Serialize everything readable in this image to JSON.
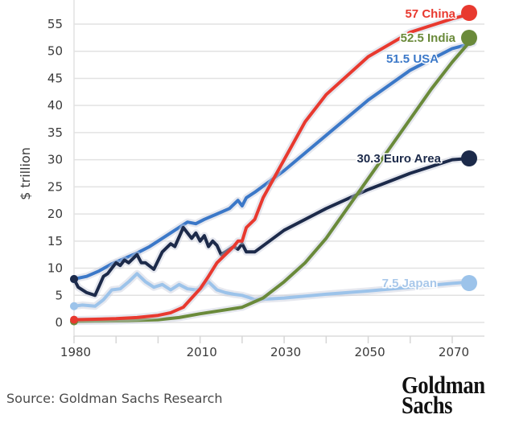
{
  "chart_data": {
    "type": "line",
    "title": "",
    "xlabel": "",
    "ylabel": "$ trillion",
    "xlim": [
      1980,
      2075
    ],
    "ylim": [
      0,
      58
    ],
    "grid": true,
    "x_ticks": [
      1980,
      1990,
      2000,
      2010,
      2020,
      2030,
      2040,
      2050,
      2060,
      2070
    ],
    "x_tick_labels": [
      "1980",
      "",
      "",
      "2010",
      "",
      "2030",
      "",
      "2050",
      "",
      "2070"
    ],
    "y_ticks": [
      0,
      5,
      10,
      15,
      20,
      25,
      30,
      35,
      40,
      45,
      50,
      55
    ],
    "y_tick_labels": [
      "0",
      "5",
      "10",
      "15",
      "20",
      "25",
      "30",
      "35",
      "40",
      "45",
      "50",
      "55"
    ],
    "series": [
      {
        "name": "USA",
        "label": "51.5 USA",
        "end_value": 51.5,
        "color": "#3b78c8",
        "x": [
          1980,
          1983,
          1986,
          1989,
          1992,
          1995,
          1998,
          2001,
          2004,
          2007,
          2009,
          2011,
          2014,
          2017,
          2019,
          2020,
          2021,
          2023,
          2030,
          2040,
          2050,
          2060,
          2070,
          2075
        ],
        "y": [
          8,
          8.5,
          9.5,
          10.8,
          11.8,
          12.8,
          14,
          15.5,
          17,
          18.5,
          18.2,
          19,
          20,
          21,
          22.5,
          21.5,
          23,
          24,
          28,
          34.5,
          41,
          46.5,
          50.5,
          51.5
        ]
      },
      {
        "name": "China",
        "label": "57 China",
        "end_value": 57,
        "color": "#e8392f",
        "x": [
          1980,
          1985,
          1990,
          1995,
          2000,
          2003,
          2006,
          2008,
          2010,
          2012,
          2014,
          2016,
          2018,
          2019,
          2020,
          2021,
          2023,
          2025,
          2030,
          2035,
          2040,
          2050,
          2060,
          2070,
          2075
        ],
        "y": [
          0.5,
          0.6,
          0.7,
          0.9,
          1.3,
          1.8,
          2.8,
          4.5,
          6.2,
          8.5,
          11,
          12.5,
          14,
          15,
          15,
          17.5,
          19,
          23,
          30,
          37,
          42,
          49,
          53.5,
          56,
          57
        ]
      },
      {
        "name": "India",
        "label": "52.5 India",
        "end_value": 52.5,
        "color": "#6a8a3a",
        "x": [
          1980,
          1990,
          2000,
          2005,
          2010,
          2015,
          2020,
          2025,
          2030,
          2035,
          2040,
          2045,
          2050,
          2055,
          2060,
          2065,
          2070,
          2075
        ],
        "y": [
          0.2,
          0.3,
          0.5,
          0.9,
          1.6,
          2.2,
          2.8,
          4.5,
          7.5,
          11,
          15.5,
          21,
          26.5,
          32,
          37.5,
          43,
          48,
          52.5
        ]
      },
      {
        "name": "Euro Area",
        "label": "30.3 Euro Area",
        "end_value": 30.3,
        "color": "#1c2a4a",
        "x": [
          1980,
          1981,
          1983,
          1985,
          1987,
          1988,
          1990,
          1991,
          1992,
          1993,
          1995,
          1996,
          1997,
          1999,
          2001,
          2003,
          2004,
          2006,
          2008,
          2009,
          2010,
          2011,
          2012,
          2013,
          2014,
          2015,
          2017,
          2018,
          2019,
          2020,
          2021,
          2022,
          2023,
          2030,
          2040,
          2050,
          2060,
          2070,
          2075
        ],
        "y": [
          8,
          6.5,
          5.5,
          5,
          8.5,
          9,
          11,
          10.5,
          11.5,
          11,
          12.5,
          11,
          11,
          9.8,
          13,
          14.5,
          14,
          17.5,
          15.5,
          16.5,
          15,
          16,
          14,
          15,
          14.2,
          12.5,
          13.5,
          14,
          13.5,
          14.5,
          13,
          13,
          13,
          17,
          21,
          24.5,
          27.5,
          30,
          30.3
        ]
      },
      {
        "name": "Japan",
        "label": "7.5 Japan",
        "end_value": 7.5,
        "color": "#9cc3ea",
        "x": [
          1980,
          1982,
          1985,
          1987,
          1989,
          1991,
          1993,
          1995,
          1997,
          1999,
          2001,
          2003,
          2005,
          2007,
          2009,
          2010,
          2012,
          2014,
          2016,
          2018,
          2020,
          2022,
          2023,
          2030,
          2040,
          2050,
          2060,
          2070,
          2075
        ],
        "y": [
          3,
          3.2,
          3,
          4.2,
          6,
          6.2,
          7.5,
          9,
          7.5,
          6.5,
          7,
          6,
          7,
          6.2,
          6,
          6.2,
          7.5,
          6,
          5.5,
          5.2,
          5,
          4.5,
          4.2,
          4.5,
          5.2,
          5.8,
          6.5,
          7.2,
          7.5
        ]
      }
    ]
  },
  "footer": {
    "source": "Source: Goldman Sachs Research",
    "logo_line1": "Goldman",
    "logo_line2": "Sachs"
  }
}
